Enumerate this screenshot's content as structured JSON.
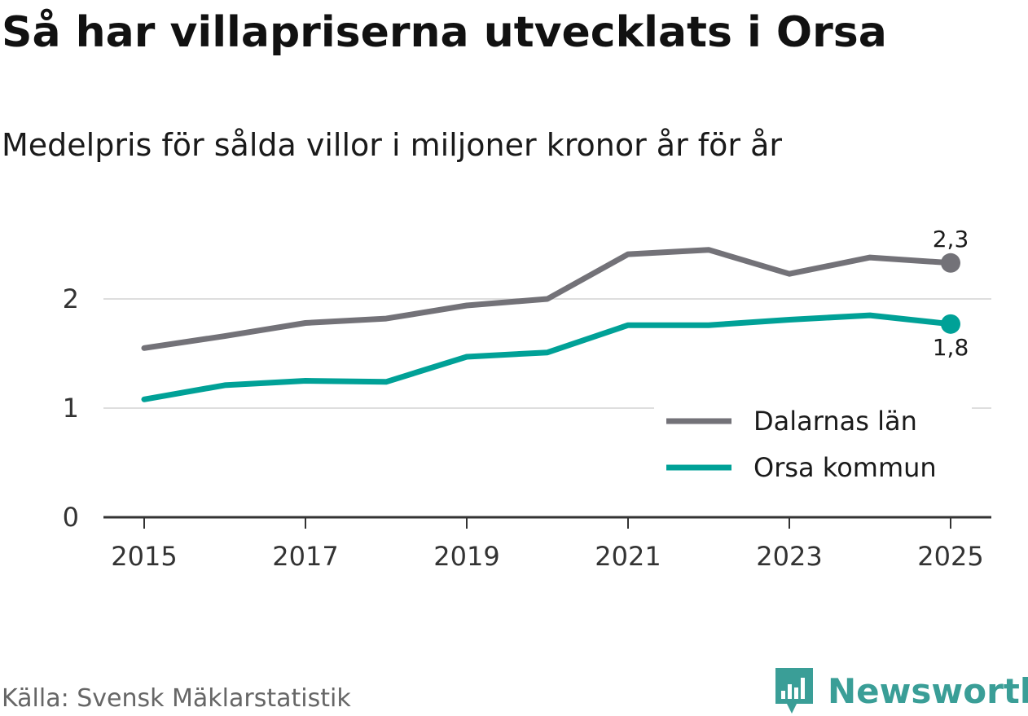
{
  "chart_data": {
    "type": "line",
    "title": "Så har villapriserna utvecklats i Orsa",
    "subtitle": "Medelpris för sålda villor i miljoner kronor år för år",
    "x": [
      2015,
      2016,
      2017,
      2018,
      2019,
      2020,
      2021,
      2022,
      2023,
      2024,
      2025
    ],
    "x_tick_labels": [
      "2015",
      "2017",
      "2019",
      "2021",
      "2023",
      "2025"
    ],
    "y_tick_labels": [
      "0",
      "1",
      "2"
    ],
    "ylim": [
      0,
      2.5
    ],
    "grid": true,
    "legend_position": "lower-right",
    "series": [
      {
        "name": "Dalarnas län",
        "color": "#737278",
        "values": [
          1.55,
          1.66,
          1.78,
          1.82,
          1.94,
          2.0,
          2.41,
          2.45,
          2.23,
          2.38,
          2.33
        ],
        "end_label": "2,3"
      },
      {
        "name": "Orsa kommun",
        "color": "#00a197",
        "values": [
          1.08,
          1.21,
          1.25,
          1.24,
          1.47,
          1.51,
          1.76,
          1.76,
          1.81,
          1.85,
          1.77
        ],
        "end_label": "1,8"
      }
    ]
  },
  "source": "Källa: Svensk Mäklarstatistik",
  "brand": {
    "name": "Newsworthy",
    "logo_icon": "newsworthy-bar-chart-icon",
    "color": "#3a9e97"
  }
}
